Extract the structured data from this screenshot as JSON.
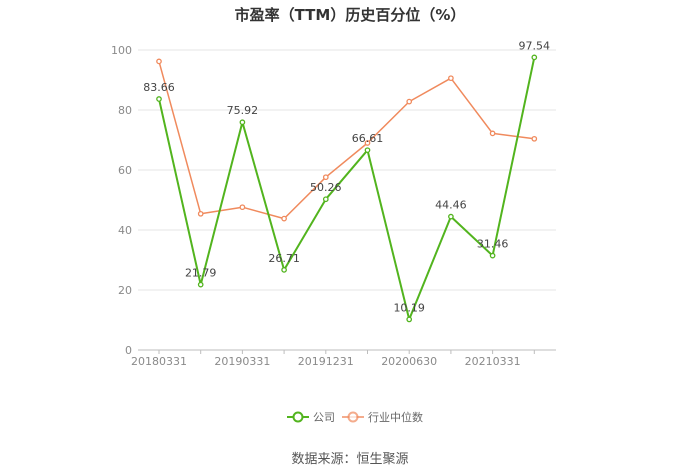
{
  "title": "市盈率（TTM）历史百分位（%）",
  "source": "数据来源：恒生聚源",
  "chart_data": {
    "type": "line",
    "title": "市盈率（TTM）历史百分位（%）",
    "x_tick_labels": [
      "20180331",
      "20190331",
      "20191231",
      "20200630",
      "20210331"
    ],
    "ylim": [
      0,
      100
    ],
    "y_ticks": [
      0,
      20,
      40,
      60,
      80,
      100
    ],
    "grid": true,
    "legend_position": "bottom",
    "series": [
      {
        "name": "公司",
        "color": "#52b41e",
        "values": [
          83.66,
          21.79,
          75.92,
          26.71,
          50.26,
          66.61,
          10.19,
          44.46,
          31.46,
          97.54
        ],
        "labels": [
          "83.66",
          "21.79",
          "75.92",
          "26.71",
          "50.26",
          "66.61",
          "10.19",
          "44.46",
          "31.46",
          "97.54"
        ]
      },
      {
        "name": "行业中位数",
        "color": "#f08a5d",
        "values": [
          96.2,
          45.4,
          47.6,
          43.8,
          57.6,
          69.0,
          82.8,
          90.6,
          72.2,
          70.4
        ]
      }
    ]
  }
}
